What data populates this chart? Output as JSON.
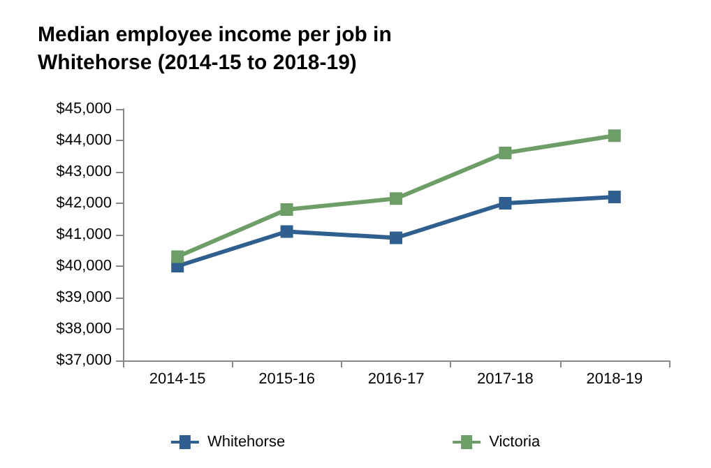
{
  "chart_data": {
    "type": "line",
    "title": "Median employee income per job in\nWhitehorse (2014-15 to 2018-19)",
    "categories": [
      "2014-15",
      "2015-16",
      "2016-17",
      "2017-18",
      "2018-19"
    ],
    "series": [
      {
        "name": "Whitehorse",
        "color": "#2f5f8f",
        "values": [
          40000,
          41100,
          40900,
          42000,
          42200
        ]
      },
      {
        "name": "Victoria",
        "color": "#6e9e68",
        "values": [
          40300,
          41800,
          42150,
          43600,
          44150
        ]
      }
    ],
    "ylim": [
      37000,
      45000
    ],
    "yticks": [
      {
        "value": 37000,
        "label": "$37,000"
      },
      {
        "value": 38000,
        "label": "$38,000"
      },
      {
        "value": 39000,
        "label": "$39,000"
      },
      {
        "value": 40000,
        "label": "$40,000"
      },
      {
        "value": 41000,
        "label": "$41,000"
      },
      {
        "value": 42000,
        "label": "$42,000"
      },
      {
        "value": 43000,
        "label": "$43,000"
      },
      {
        "value": 44000,
        "label": "$44,000"
      },
      {
        "value": 45000,
        "label": "$45,000"
      }
    ],
    "grid": false,
    "legend": "bottom",
    "marker": "square",
    "line_style": "solid"
  }
}
